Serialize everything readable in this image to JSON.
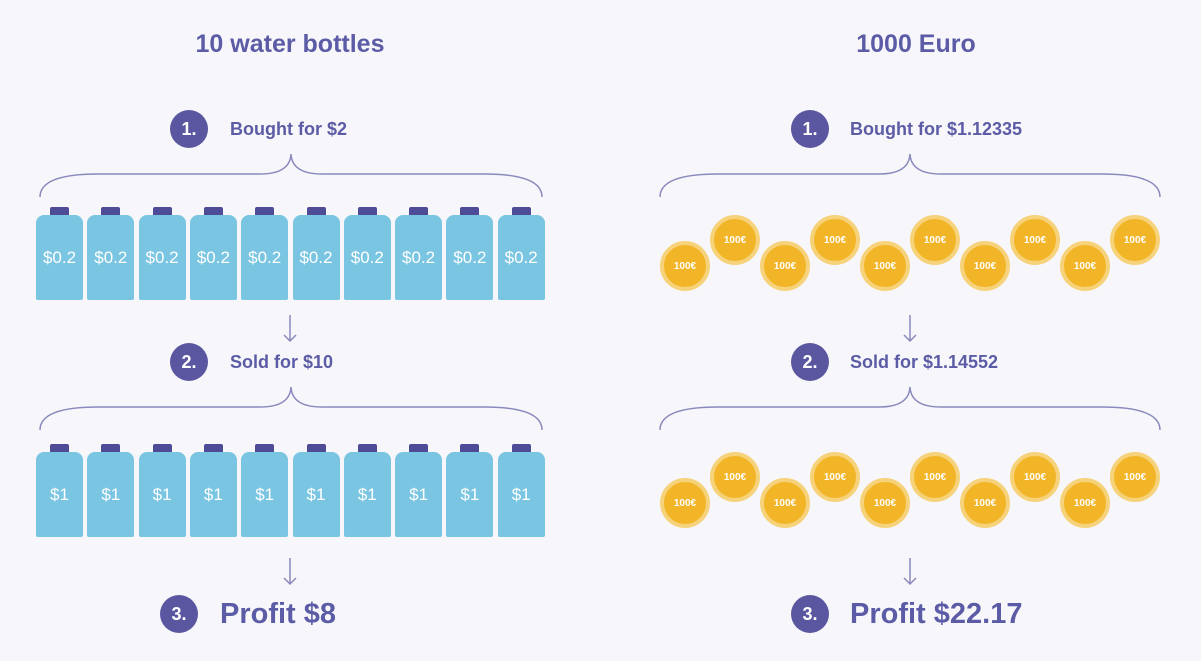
{
  "left": {
    "title": "10 water bottles",
    "steps": [
      {
        "number": "1.",
        "label": "Bought for $2"
      },
      {
        "number": "2.",
        "label": "Sold for $10"
      },
      {
        "number": "3.",
        "label": "Profit $8"
      }
    ],
    "bought_bottles": [
      "$0.2",
      "$0.2",
      "$0.2",
      "$0.2",
      "$0.2",
      "$0.2",
      "$0.2",
      "$0.2",
      "$0.2",
      "$0.2"
    ],
    "sold_bottles": [
      "$1",
      "$1",
      "$1",
      "$1",
      "$1",
      "$1",
      "$1",
      "$1",
      "$1",
      "$1"
    ]
  },
  "right": {
    "title": "1000 Euro",
    "steps": [
      {
        "number": "1.",
        "label": "Bought for $1.12335"
      },
      {
        "number": "2.",
        "label": "Sold for $1.14552"
      },
      {
        "number": "3.",
        "label": "Profit $22.17"
      }
    ],
    "bought_coins": [
      "100€",
      "100€",
      "100€",
      "100€",
      "100€",
      "100€",
      "100€",
      "100€",
      "100€",
      "100€"
    ],
    "sold_coins": [
      "100€",
      "100€",
      "100€",
      "100€",
      "100€",
      "100€",
      "100€",
      "100€",
      "100€",
      "100€"
    ]
  },
  "colors": {
    "accent": "#5a57a0",
    "text": "#5b5ba6",
    "bottle": "#7ac5e2",
    "bottle_cap": "#4f4c97",
    "coin": "#f2b527",
    "coin_rim": "#f6d27a",
    "line": "#8a89bd"
  }
}
